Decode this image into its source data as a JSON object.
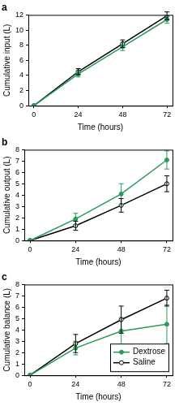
{
  "chart_data": [
    {
      "type": "line",
      "title": "a",
      "y_label": "Cumulative input (L)",
      "x_label": "Time (hours)",
      "x": [
        0,
        24,
        48,
        72
      ],
      "xlim": [
        -3,
        75
      ],
      "xticks": [
        0,
        24,
        48,
        72
      ],
      "ylim": [
        0,
        12
      ],
      "yticks": [
        0,
        2,
        4,
        6,
        8,
        10,
        12
      ],
      "grid": false,
      "series": [
        {
          "color": "#2a9a5c",
          "marker": "circle",
          "values": [
            0,
            4.2,
            7.8,
            11.4
          ],
          "errors": [
            0,
            0.4,
            0.5,
            0.5
          ]
        },
        {
          "color": "#000000",
          "marker": "open_circle",
          "values": [
            0,
            4.5,
            8.2,
            11.9
          ],
          "errors": [
            0,
            0.4,
            0.5,
            0.5
          ]
        }
      ]
    },
    {
      "type": "line",
      "title": "b",
      "y_label": "Cumulative output (L)",
      "x_label": "Time (hours)",
      "x": [
        0,
        24,
        48,
        72
      ],
      "xlim": [
        -3,
        75
      ],
      "xticks": [
        0,
        24,
        48,
        72
      ],
      "ylim": [
        0,
        8
      ],
      "yticks": [
        0,
        1,
        2,
        3,
        4,
        5,
        6,
        7,
        8
      ],
      "grid": false,
      "series": [
        {
          "color": "#2a9a5c",
          "marker": "circle",
          "values": [
            0,
            1.9,
            4.1,
            7.1
          ],
          "errors": [
            0,
            0.5,
            0.9,
            0.8
          ]
        },
        {
          "color": "#000000",
          "marker": "open_circle",
          "values": [
            0,
            1.3,
            3.1,
            5.0
          ],
          "errors": [
            0,
            0.4,
            0.6,
            0.7
          ]
        }
      ]
    },
    {
      "type": "line",
      "title": "c",
      "y_label": "Cumulative balance (L)",
      "x_label": "Time (hours)",
      "x": [
        0,
        24,
        48,
        72
      ],
      "xlim": [
        -3,
        75
      ],
      "xticks": [
        0,
        24,
        48,
        72
      ],
      "ylim": [
        0,
        8
      ],
      "yticks": [
        0,
        1,
        2,
        3,
        4,
        5,
        6,
        7,
        8
      ],
      "grid": false,
      "legend": "lower right",
      "series": [
        {
          "name": "Dextrose",
          "color": "#2a9a5c",
          "marker": "circle",
          "values": [
            0,
            2.4,
            3.9,
            4.5
          ],
          "errors": [
            0,
            0.6,
            1.2,
            1.7
          ]
        },
        {
          "name": "Saline",
          "color": "#000000",
          "marker": "open_circle",
          "values": [
            0,
            2.8,
            4.9,
            6.8
          ],
          "errors": [
            0,
            0.8,
            1.2,
            0.7
          ]
        }
      ]
    }
  ]
}
